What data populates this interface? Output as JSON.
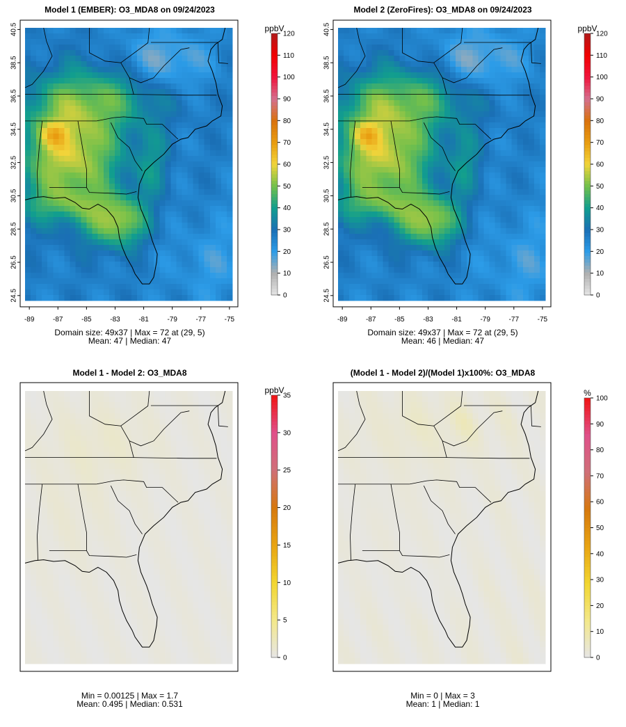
{
  "chart_data": [
    {
      "type": "heatmap",
      "title": "Model 1 (EMBER): O3_MDA8 on 09/24/2023",
      "unit": "ppbV",
      "x_ticks": [
        "-89",
        "-87",
        "-85",
        "-83",
        "-81",
        "-79",
        "-77",
        "-75"
      ],
      "y_ticks": [
        "24.5",
        "26.5",
        "28.5",
        "30.5",
        "32.5",
        "34.5",
        "36.5",
        "38.5",
        "40.5"
      ],
      "xlim": [
        -89.3,
        -74.8
      ],
      "ylim": [
        24.2,
        40.6
      ],
      "colorbar": {
        "min": 0,
        "max": 120,
        "ticks": [
          "0",
          "10",
          "20",
          "30",
          "40",
          "50",
          "60",
          "70",
          "80",
          "90",
          "100",
          "110",
          "120"
        ]
      },
      "stats_line1": "Domain size: 49x37 | Max = 72 at (29, 5)",
      "stats_line2": "Mean: 47 |  Median: 47",
      "domain_size": "49x37",
      "max": 72,
      "max_location": "(29, 5)",
      "mean": 47,
      "median": 47
    },
    {
      "type": "heatmap",
      "title": "Model 2 (ZeroFires): O3_MDA8 on 09/24/2023",
      "unit": "ppbV",
      "x_ticks": [
        "-89",
        "-87",
        "-85",
        "-83",
        "-81",
        "-79",
        "-77",
        "-75"
      ],
      "y_ticks": [
        "24.5",
        "26.5",
        "28.5",
        "30.5",
        "32.5",
        "34.5",
        "36.5",
        "38.5",
        "40.5"
      ],
      "xlim": [
        -89.3,
        -74.8
      ],
      "ylim": [
        24.2,
        40.6
      ],
      "colorbar": {
        "min": 0,
        "max": 120,
        "ticks": [
          "0",
          "10",
          "20",
          "30",
          "40",
          "50",
          "60",
          "70",
          "80",
          "90",
          "100",
          "110",
          "120"
        ]
      },
      "stats_line1": "Domain size: 49x37 | Max = 72 at (29, 5)",
      "stats_line2": "Mean: 46 |  Median: 47",
      "domain_size": "49x37",
      "max": 72,
      "max_location": "(29, 5)",
      "mean": 46,
      "median": 47
    },
    {
      "type": "heatmap",
      "title": "Model 1 - Model 2: O3_MDA8",
      "unit": "ppbV",
      "colorbar": {
        "min": 0,
        "max": 35,
        "ticks": [
          "0",
          "5",
          "10",
          "15",
          "20",
          "25",
          "30",
          "35"
        ]
      },
      "stats_line1": "Min = 0.00125 | Max = 1.7",
      "stats_line2": "Mean: 0.495 |  Median: 0.531",
      "min": 0.00125,
      "max": 1.7,
      "mean": 0.495,
      "median": 0.531
    },
    {
      "type": "heatmap",
      "title": "(Model 1 - Model 2)/(Model 1)x100%: O3_MDA8",
      "unit": "%",
      "colorbar": {
        "min": 0,
        "max": 100,
        "ticks": [
          "0",
          "10",
          "20",
          "30",
          "40",
          "50",
          "60",
          "70",
          "80",
          "90",
          "100"
        ]
      },
      "stats_line1": "Min = 0 | Max = 3",
      "stats_line2": "Mean: 1 |  Median: 1",
      "min": 0,
      "max": 3,
      "mean": 1,
      "median": 1
    }
  ],
  "colors": {
    "conc_scale": [
      "#e6e6e6",
      "#b0b0b0",
      "#2c9ce8",
      "#1a6fb5",
      "#119e8e",
      "#73c04b",
      "#f2d43a",
      "#e89c10",
      "#d9720c",
      "#d4708f",
      "#f0143c",
      "#f20000",
      "#b01a1a"
    ],
    "diff_scale": [
      "#e6e6e6",
      "#f3e88a",
      "#f2d630",
      "#e8a412",
      "#d6780e",
      "#cf7078",
      "#e0508a",
      "#f01414"
    ],
    "map_outline": "#000000"
  }
}
